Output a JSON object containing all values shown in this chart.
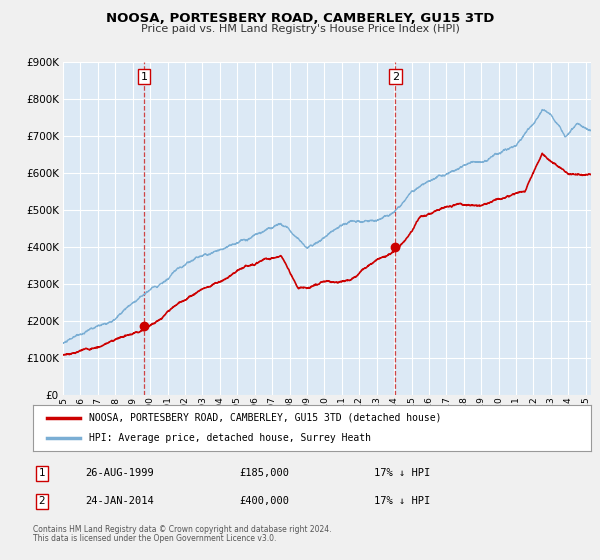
{
  "title": "NOOSA, PORTESBERY ROAD, CAMBERLEY, GU15 3TD",
  "subtitle": "Price paid vs. HM Land Registry's House Price Index (HPI)",
  "fig_bg_color": "#f0f0f0",
  "plot_bg_color": "#dce9f5",
  "ylim": [
    0,
    900000
  ],
  "xlim_start": 1995.0,
  "xlim_end": 2025.3,
  "yticks": [
    0,
    100000,
    200000,
    300000,
    400000,
    500000,
    600000,
    700000,
    800000,
    900000
  ],
  "sale1_date": 1999.65,
  "sale1_price": 185000,
  "sale1_label": "1",
  "sale2_date": 2014.07,
  "sale2_price": 400000,
  "sale2_label": "2",
  "red_line_color": "#cc0000",
  "blue_line_color": "#7aaed4",
  "marker_color": "#cc0000",
  "vline_color": "#cc3333",
  "grid_color": "#ffffff",
  "legend_label_red": "NOOSA, PORTESBERY ROAD, CAMBERLEY, GU15 3TD (detached house)",
  "legend_label_blue": "HPI: Average price, detached house, Surrey Heath",
  "table_row1": [
    "1",
    "26-AUG-1999",
    "£185,000",
    "17% ↓ HPI"
  ],
  "table_row2": [
    "2",
    "24-JAN-2014",
    "£400,000",
    "17% ↓ HPI"
  ],
  "footnote1": "Contains HM Land Registry data © Crown copyright and database right 2024.",
  "footnote2": "This data is licensed under the Open Government Licence v3.0."
}
